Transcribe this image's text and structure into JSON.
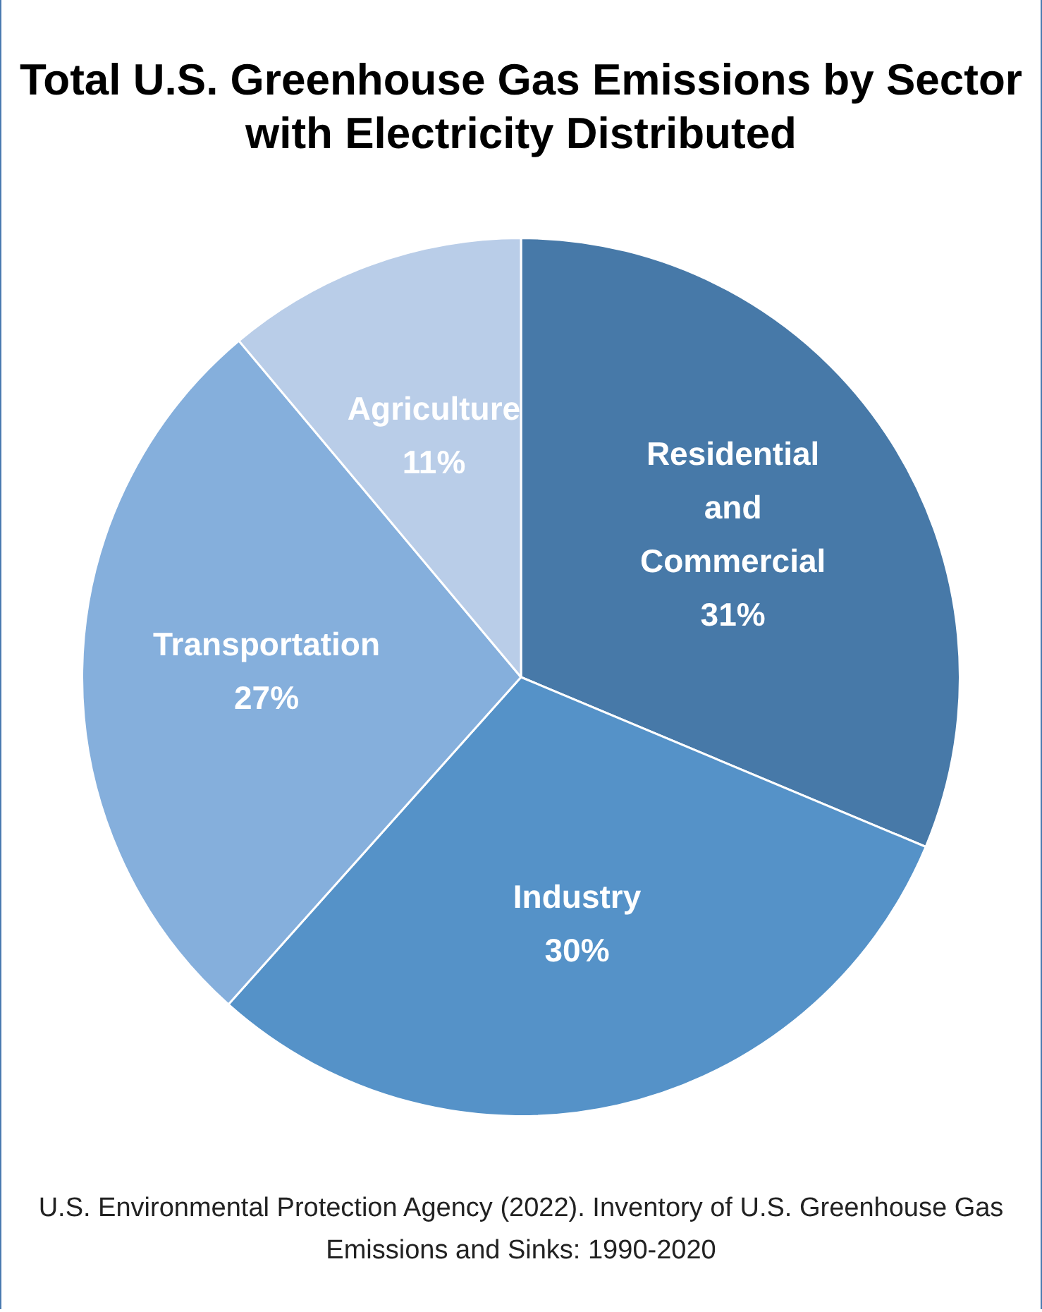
{
  "chart_data": {
    "type": "pie",
    "title": "Total U.S. Greenhouse Gas Emissions by Sector with Electricity Distributed",
    "categories": [
      "Residential and Commercial",
      "Industry",
      "Transportation",
      "Agriculture"
    ],
    "values": [
      31,
      30,
      27,
      11
    ],
    "value_labels": [
      "31%",
      "30%",
      "27%",
      "11%"
    ],
    "colors": [
      "#4779a8",
      "#5592c8",
      "#85afdc",
      "#b9cde8"
    ],
    "legend": false,
    "annotations": [
      "U.S. Environmental Protection Agency (2022). Inventory of U.S. Greenhouse Gas Emissions and Sinks: 1990-2020"
    ]
  }
}
